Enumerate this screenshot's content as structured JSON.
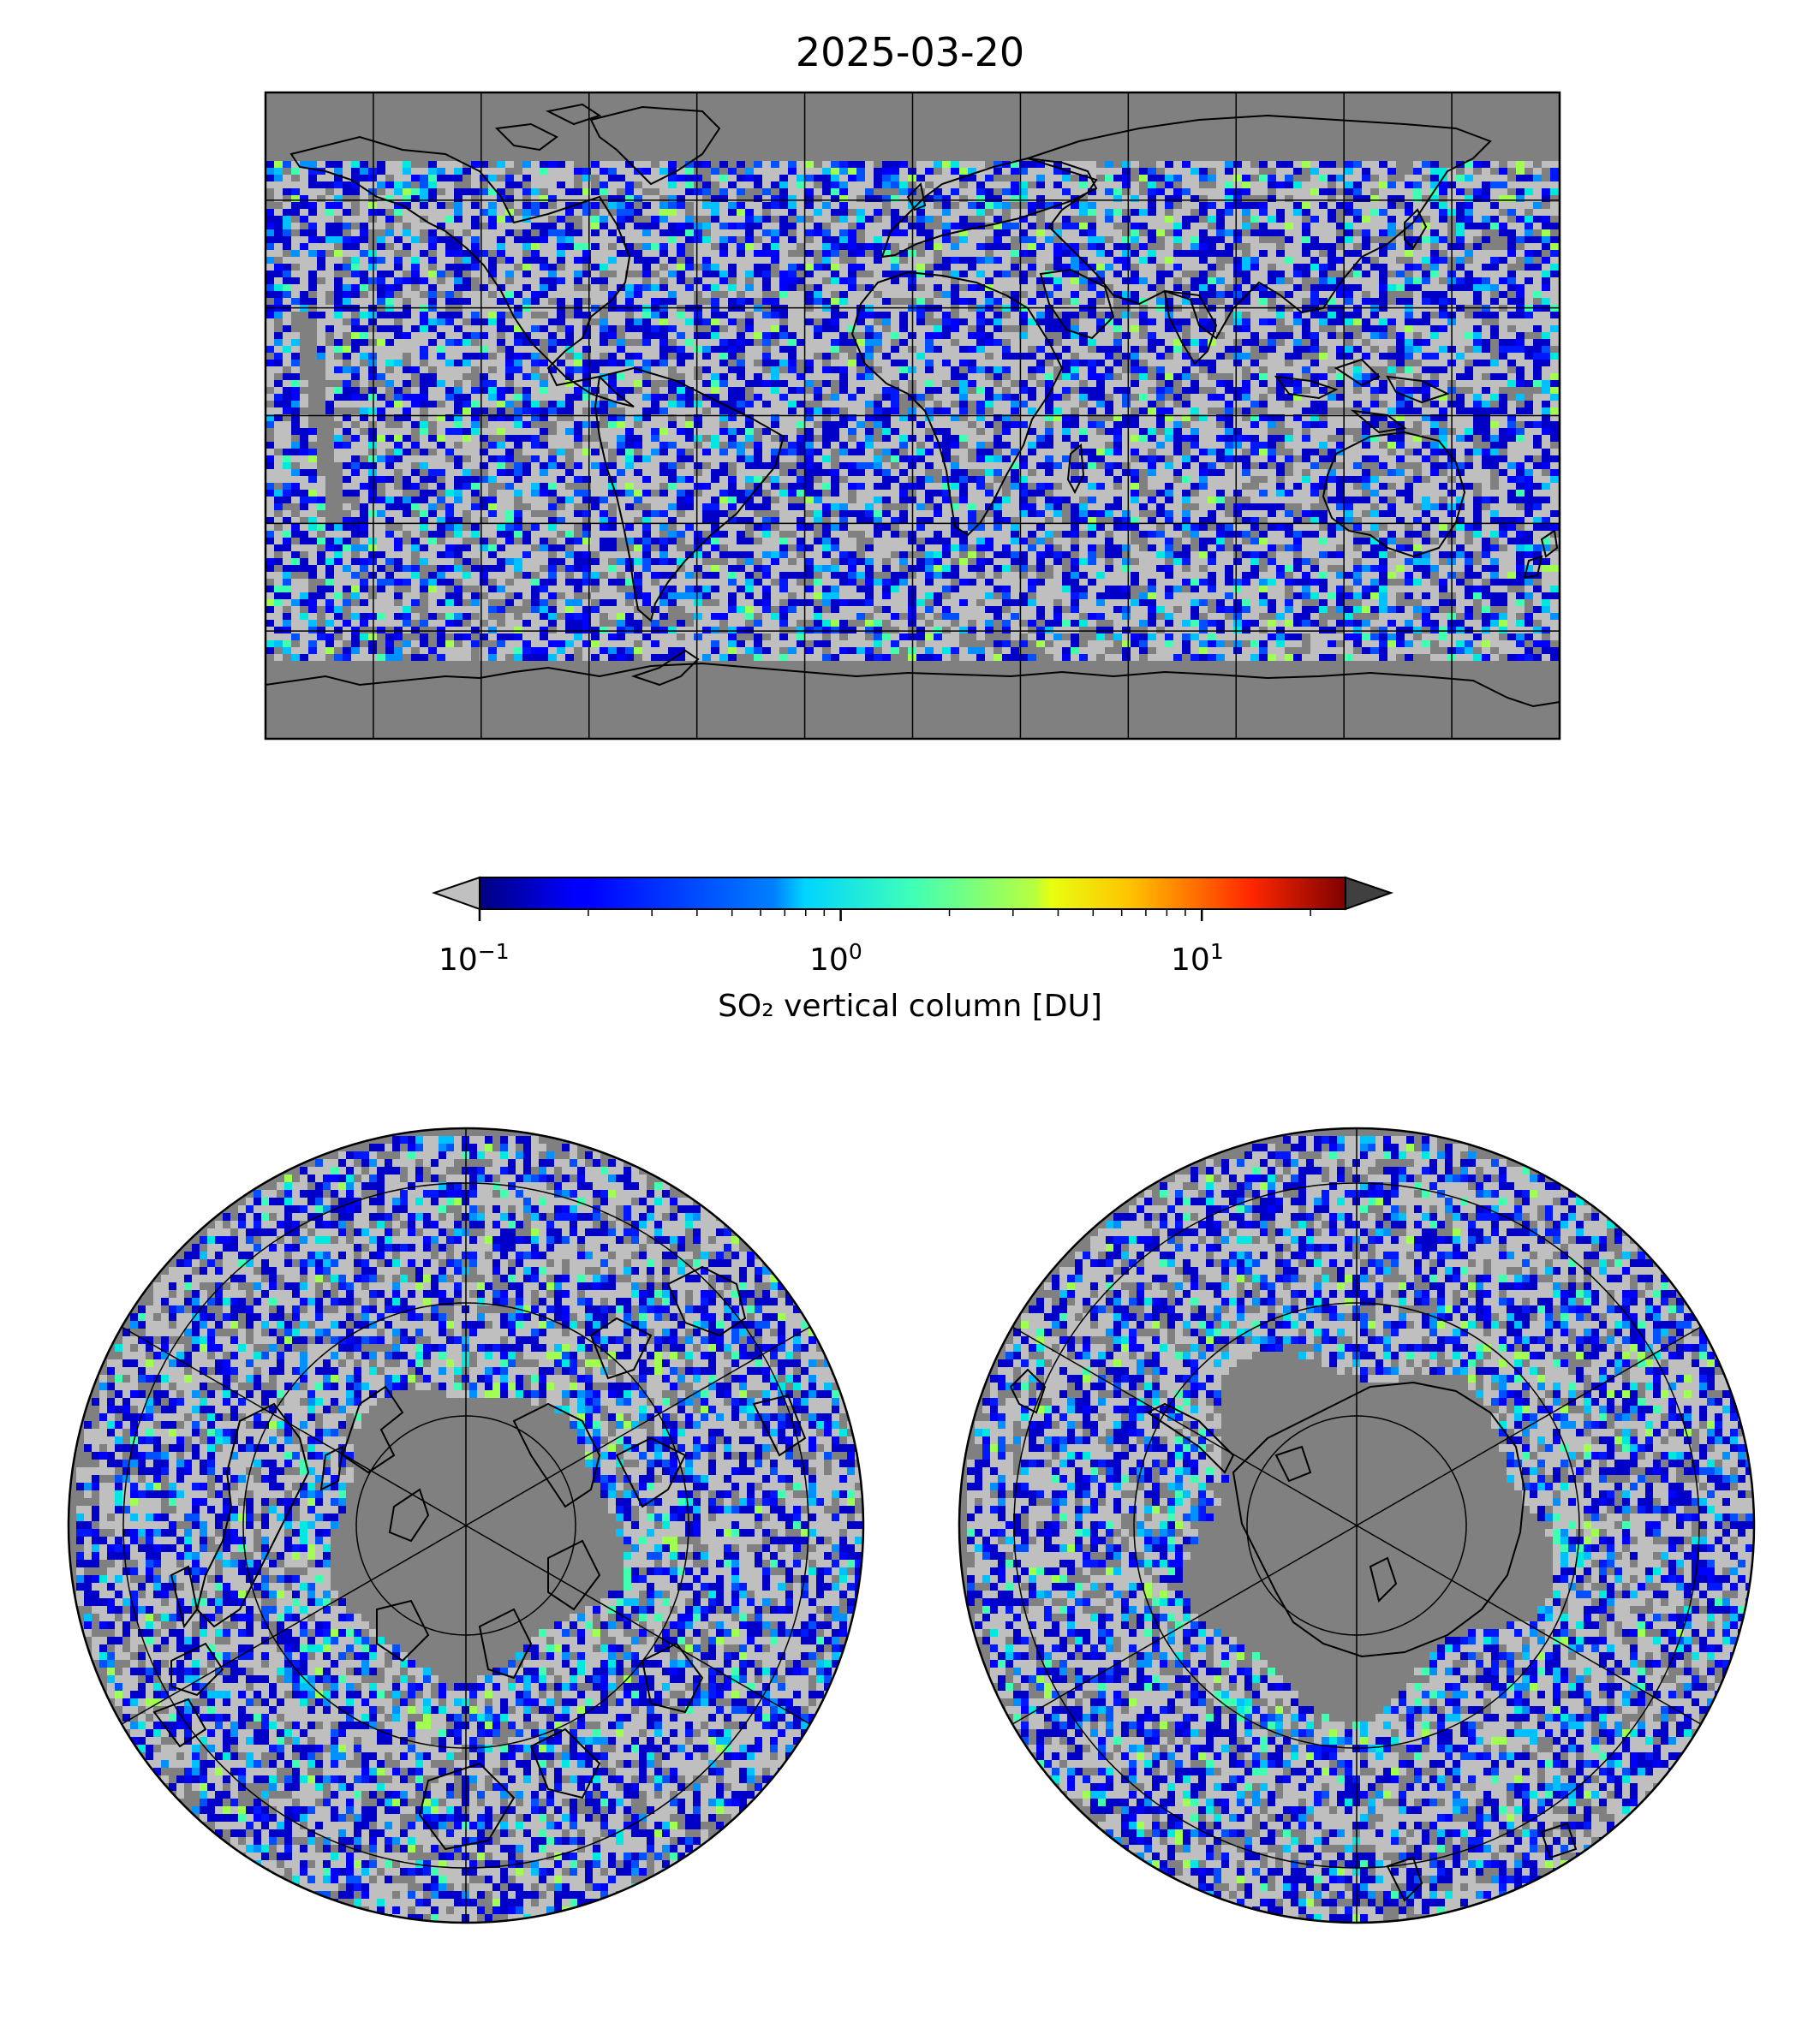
{
  "title": "2025-03-20",
  "colorbar": {
    "label": "SO₂ vertical column [DU]",
    "scale": "log",
    "range": [
      0.1,
      25
    ],
    "colormap": "jet",
    "under_color": "#c0c0c0",
    "over_color": "#404040",
    "ticks": [
      {
        "base": "10",
        "exp": "−1",
        "value": 0.1
      },
      {
        "base": "10",
        "exp": "0",
        "value": 1
      },
      {
        "base": "10",
        "exp": "1",
        "value": 10
      }
    ]
  },
  "colors": {
    "no_data": "#808080",
    "below_range": "#bfbfbf",
    "coastline": "#000000",
    "gridline": "#000000"
  },
  "maps": [
    {
      "projection": "plate-carree",
      "extent": "global",
      "gridlines": {
        "lon_step_deg": 30,
        "lat_step_deg": 30
      }
    },
    {
      "projection": "north-polar-stereographic"
    },
    {
      "projection": "south-polar-stereographic"
    }
  ]
}
